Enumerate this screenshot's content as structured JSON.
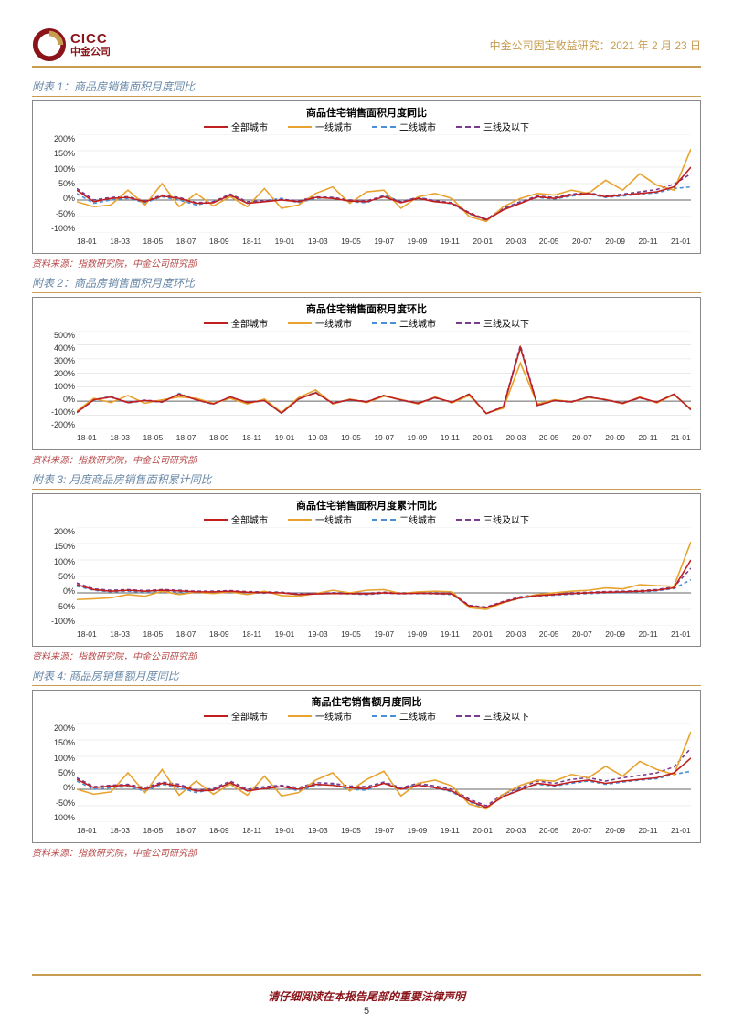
{
  "header": {
    "logo_cicc": "CICC",
    "logo_cn": "中金公司",
    "title_prefix": "中金公司固定收益研究：",
    "date": "2021 年 2 月 23 日",
    "accent_color": "#c89d52",
    "brand_color": "#8a1419"
  },
  "x_labels": [
    "18-01",
    "18-03",
    "18-05",
    "18-07",
    "18-09",
    "18-11",
    "19-01",
    "19-03",
    "19-05",
    "19-07",
    "19-09",
    "19-11",
    "20-01",
    "20-03",
    "20-05",
    "20-07",
    "20-09",
    "20-11",
    "21-01"
  ],
  "series_meta": {
    "all": {
      "label": "全部城市",
      "color": "#c11f1f",
      "dashed": false
    },
    "tier1": {
      "label": "一线城市",
      "color": "#e8a22e",
      "dashed": false
    },
    "tier2": {
      "label": "二线城市",
      "color": "#4a8fd6",
      "dashed": true
    },
    "tier3": {
      "label": "三线及以下",
      "color": "#7a3a8f",
      "dashed": true
    }
  },
  "charts": [
    {
      "fig_label": "附表 1：商品房销售面积月度同比",
      "inner_title": "商品住宅销售面积月度同比",
      "source": "资料来源：指数研究院，中金公司研究部",
      "type": "line",
      "ylim": [
        -100,
        200
      ],
      "ytick_step": 50,
      "y_suffix": "%",
      "series": {
        "all": [
          30,
          -5,
          5,
          8,
          -5,
          12,
          5,
          -10,
          -8,
          15,
          -10,
          -5,
          0,
          -5,
          8,
          5,
          -3,
          -5,
          10,
          -8,
          5,
          -5,
          -10,
          -40,
          -60,
          -30,
          -10,
          10,
          5,
          15,
          20,
          10,
          15,
          20,
          25,
          40,
          100
        ],
        "tier1": [
          -5,
          -20,
          -15,
          30,
          -15,
          50,
          -20,
          20,
          -18,
          10,
          -20,
          35,
          -25,
          -15,
          20,
          40,
          -10,
          25,
          30,
          -25,
          10,
          20,
          5,
          -50,
          -65,
          -20,
          5,
          20,
          15,
          30,
          20,
          60,
          30,
          80,
          45,
          30,
          155
        ],
        "tier2": [
          20,
          -10,
          0,
          5,
          -8,
          10,
          0,
          -15,
          -5,
          12,
          -8,
          -2,
          5,
          -8,
          5,
          8,
          -5,
          -8,
          15,
          -5,
          8,
          -2,
          -12,
          -42,
          -62,
          -28,
          -8,
          8,
          3,
          12,
          18,
          8,
          12,
          18,
          22,
          35,
          40
        ],
        "tier3": [
          35,
          0,
          8,
          10,
          -2,
          15,
          8,
          -8,
          -5,
          18,
          -5,
          -2,
          2,
          -2,
          10,
          8,
          0,
          -2,
          12,
          -5,
          8,
          -2,
          -8,
          -38,
          -58,
          -25,
          -5,
          12,
          8,
          18,
          22,
          12,
          18,
          25,
          32,
          48,
          80
        ]
      }
    },
    {
      "fig_label": "附表 2：商品房销售面积月度环比",
      "inner_title": "商品住宅销售面积月度环比",
      "source": "资料来源：指数研究院，中金公司研究部",
      "type": "line",
      "ylim": [
        -200,
        500
      ],
      "ytick_step": 100,
      "y_suffix": "%",
      "series": {
        "all": [
          -80,
          10,
          30,
          -10,
          5,
          -5,
          50,
          10,
          -20,
          30,
          -10,
          5,
          -85,
          15,
          60,
          -15,
          10,
          -5,
          40,
          8,
          -15,
          25,
          -8,
          50,
          -88,
          -40,
          380,
          -30,
          5,
          -5,
          30,
          10,
          -15,
          25,
          -8,
          50,
          -60
        ],
        "tier1": [
          -70,
          20,
          -10,
          40,
          -15,
          10,
          30,
          20,
          -15,
          20,
          -20,
          15,
          -80,
          25,
          80,
          -20,
          15,
          -10,
          35,
          12,
          -20,
          30,
          -12,
          40,
          -85,
          -50,
          270,
          -20,
          10,
          -5,
          25,
          12,
          -18,
          30,
          -12,
          45,
          -55
        ],
        "tier2": [
          -82,
          8,
          35,
          -12,
          3,
          -8,
          55,
          8,
          -22,
          32,
          -12,
          3,
          -86,
          13,
          65,
          -17,
          8,
          -8,
          42,
          6,
          -17,
          27,
          -10,
          52,
          -89,
          -42,
          390,
          -32,
          3,
          -8,
          32,
          8,
          -17,
          27,
          -10,
          52,
          -62
        ],
        "tier3": [
          -78,
          12,
          28,
          -8,
          7,
          -3,
          48,
          12,
          -18,
          28,
          -8,
          7,
          -84,
          17,
          58,
          -13,
          12,
          -3,
          38,
          10,
          -13,
          23,
          -6,
          48,
          -87,
          -38,
          395,
          -28,
          7,
          -3,
          28,
          12,
          -13,
          23,
          -6,
          48,
          -58
        ]
      }
    },
    {
      "fig_label": "附表 3: 月度商品房销售面积累计同比",
      "inner_title": "商品住宅销售面积月度累计同比",
      "source": "资料来源：指数研究院，中金公司研究部",
      "type": "line",
      "ylim": [
        -100,
        200
      ],
      "ytick_step": 50,
      "y_suffix": "%",
      "series": {
        "all": [
          25,
          10,
          5,
          8,
          5,
          8,
          6,
          3,
          3,
          5,
          2,
          1,
          0,
          -5,
          -3,
          -2,
          -2,
          -3,
          0,
          -2,
          -1,
          -2,
          -3,
          -40,
          -45,
          -28,
          -15,
          -8,
          -5,
          -2,
          0,
          2,
          3,
          5,
          8,
          15,
          100
        ],
        "tier1": [
          -20,
          -18,
          -15,
          -5,
          -10,
          5,
          -5,
          2,
          -2,
          3,
          -5,
          5,
          -8,
          -10,
          -2,
          8,
          0,
          8,
          10,
          -2,
          3,
          5,
          3,
          -45,
          -50,
          -30,
          -15,
          -5,
          0,
          5,
          8,
          15,
          12,
          25,
          22,
          20,
          155
        ],
        "tier2": [
          20,
          8,
          3,
          5,
          2,
          5,
          3,
          0,
          0,
          3,
          0,
          -1,
          2,
          -6,
          -3,
          -2,
          -3,
          -5,
          -1,
          -3,
          -2,
          -3,
          -5,
          -42,
          -47,
          -30,
          -16,
          -10,
          -7,
          -4,
          -2,
          0,
          1,
          3,
          6,
          13,
          40
        ],
        "tier3": [
          30,
          12,
          8,
          10,
          7,
          10,
          8,
          5,
          5,
          7,
          4,
          3,
          2,
          -3,
          -1,
          0,
          0,
          -1,
          2,
          0,
          1,
          0,
          -1,
          -38,
          -43,
          -26,
          -12,
          -6,
          -3,
          0,
          2,
          4,
          5,
          7,
          10,
          18,
          75
        ]
      }
    },
    {
      "fig_label": "附表 4: 商品房销售额月度同比",
      "inner_title": "商品住宅销售额月度同比",
      "source": "资料来源：指数研究院，中金公司研究部",
      "type": "line",
      "ylim": [
        -100,
        200
      ],
      "ytick_step": 50,
      "y_suffix": "%",
      "series": {
        "all": [
          30,
          5,
          10,
          12,
          0,
          18,
          10,
          -5,
          -3,
          20,
          -5,
          2,
          8,
          0,
          15,
          12,
          5,
          2,
          18,
          0,
          12,
          5,
          -5,
          -35,
          -55,
          -22,
          -2,
          18,
          12,
          22,
          28,
          18,
          25,
          30,
          35,
          50,
          95
        ],
        "tier1": [
          0,
          -15,
          -8,
          50,
          -10,
          60,
          -18,
          25,
          -15,
          15,
          -18,
          40,
          -20,
          -10,
          28,
          50,
          -5,
          30,
          55,
          -20,
          18,
          28,
          10,
          -45,
          -60,
          -15,
          12,
          28,
          25,
          45,
          35,
          70,
          40,
          85,
          60,
          45,
          175
        ],
        "tier2": [
          25,
          0,
          5,
          8,
          -5,
          15,
          5,
          -10,
          0,
          17,
          -3,
          5,
          10,
          -5,
          12,
          15,
          0,
          -3,
          20,
          2,
          15,
          5,
          -8,
          -38,
          -58,
          -20,
          0,
          15,
          10,
          18,
          25,
          15,
          22,
          28,
          32,
          45,
          55
        ],
        "tier3": [
          35,
          8,
          12,
          15,
          5,
          22,
          15,
          -2,
          2,
          25,
          0,
          8,
          12,
          5,
          20,
          18,
          10,
          8,
          22,
          5,
          18,
          10,
          0,
          -30,
          -50,
          -15,
          5,
          25,
          18,
          30,
          35,
          25,
          35,
          42,
          50,
          68,
          125
        ]
      }
    }
  ],
  "footer": {
    "text": "请仔细阅读在本报告尾部的重要法律声明",
    "page": "5"
  }
}
